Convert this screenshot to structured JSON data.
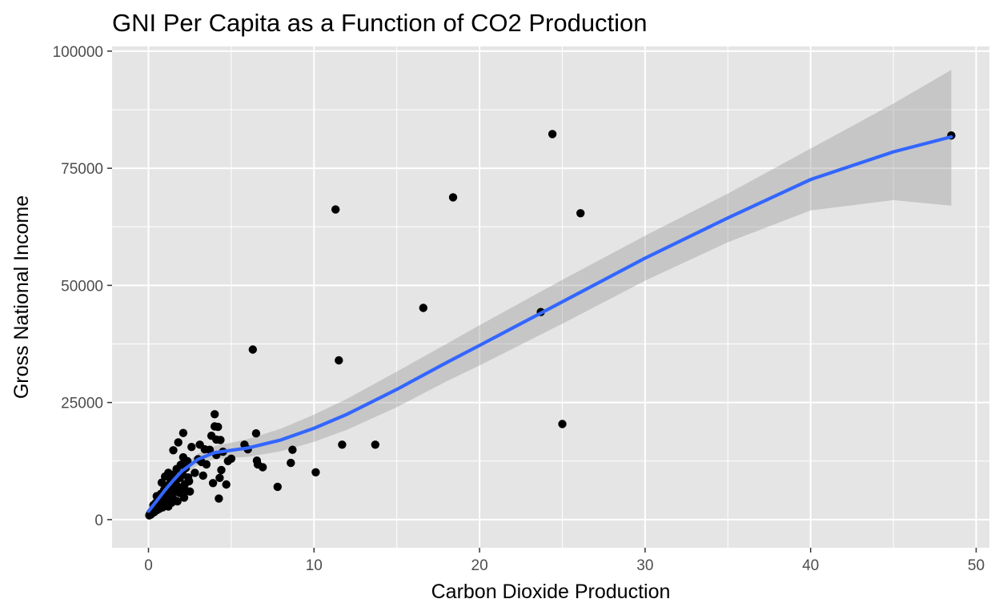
{
  "chart_data": {
    "type": "scatter",
    "title": "GNI Per Capita as a Function of CO2 Production",
    "xlabel": "Carbon Dioxide Production",
    "ylabel": "Gross National Income",
    "xlim": [
      -2.2,
      50.8
    ],
    "ylim": [
      -6000,
      101000
    ],
    "xticks": [
      0,
      10,
      20,
      30,
      40,
      50
    ],
    "xtick_labels": [
      "0",
      "10",
      "20",
      "30",
      "40",
      "50"
    ],
    "yticks": [
      0,
      25000,
      50000,
      75000,
      100000
    ],
    "ytick_labels": [
      "0",
      "25000",
      "50000",
      "75000",
      "100000"
    ],
    "grid": true,
    "colors": {
      "panel": "#e5e5e5",
      "grid": "#ffffff",
      "points": "#000000",
      "smooth_line": "#3366ff",
      "ribbon": "#999999"
    },
    "points": [
      [
        0.05,
        900
      ],
      [
        0.1,
        1300
      ],
      [
        0.15,
        1100
      ],
      [
        0.2,
        1800
      ],
      [
        0.25,
        1500
      ],
      [
        0.3,
        2200
      ],
      [
        0.3,
        3100
      ],
      [
        0.35,
        1600
      ],
      [
        0.4,
        2600
      ],
      [
        0.45,
        3600
      ],
      [
        0.5,
        2000
      ],
      [
        0.5,
        5000
      ],
      [
        0.55,
        2900
      ],
      [
        0.6,
        4300
      ],
      [
        0.65,
        2300
      ],
      [
        0.7,
        3300
      ],
      [
        0.75,
        5500
      ],
      [
        0.8,
        7900
      ],
      [
        0.85,
        2600
      ],
      [
        0.9,
        4800
      ],
      [
        0.95,
        6400
      ],
      [
        1.0,
        3000
      ],
      [
        1.0,
        9200
      ],
      [
        1.05,
        4000
      ],
      [
        1.1,
        5900
      ],
      [
        1.15,
        7300
      ],
      [
        1.2,
        2800
      ],
      [
        1.2,
        10000
      ],
      [
        1.25,
        4600
      ],
      [
        1.3,
        6800
      ],
      [
        1.35,
        8300
      ],
      [
        1.4,
        3600
      ],
      [
        1.45,
        5500
      ],
      [
        1.5,
        9600
      ],
      [
        1.5,
        14800
      ],
      [
        1.55,
        4200
      ],
      [
        1.6,
        6300
      ],
      [
        1.65,
        7700
      ],
      [
        1.7,
        10800
      ],
      [
        1.75,
        3900
      ],
      [
        1.8,
        16500
      ],
      [
        1.85,
        5700
      ],
      [
        1.9,
        8900
      ],
      [
        1.95,
        11700
      ],
      [
        2.0,
        6900
      ],
      [
        2.05,
        9700
      ],
      [
        2.1,
        13300
      ],
      [
        2.1,
        18500
      ],
      [
        2.15,
        4700
      ],
      [
        2.2,
        7600
      ],
      [
        2.25,
        11000
      ],
      [
        2.3,
        6100
      ],
      [
        2.35,
        12500
      ],
      [
        2.4,
        9000
      ],
      [
        2.45,
        8200
      ],
      [
        2.5,
        6000
      ],
      [
        2.6,
        15500
      ],
      [
        2.8,
        10000
      ],
      [
        3.0,
        12900
      ],
      [
        3.1,
        16000
      ],
      [
        3.2,
        12300
      ],
      [
        3.3,
        9400
      ],
      [
        3.4,
        15000
      ],
      [
        3.5,
        11800
      ],
      [
        3.7,
        14900
      ],
      [
        3.8,
        17900
      ],
      [
        3.9,
        7800
      ],
      [
        4.0,
        19900
      ],
      [
        4.0,
        22500
      ],
      [
        4.1,
        13800
      ],
      [
        4.1,
        17100
      ],
      [
        4.2,
        19800
      ],
      [
        4.25,
        4500
      ],
      [
        4.3,
        8900
      ],
      [
        4.35,
        17000
      ],
      [
        4.4,
        10600
      ],
      [
        4.5,
        14500
      ],
      [
        4.7,
        7500
      ],
      [
        4.8,
        12500
      ],
      [
        5.0,
        13000
      ],
      [
        5.8,
        16000
      ],
      [
        6.0,
        15000
      ],
      [
        6.3,
        36300
      ],
      [
        6.5,
        18400
      ],
      [
        6.55,
        12600
      ],
      [
        6.6,
        11800
      ],
      [
        6.9,
        11200
      ],
      [
        7.8,
        7000
      ],
      [
        8.6,
        12100
      ],
      [
        8.7,
        14900
      ],
      [
        10.1,
        10100
      ],
      [
        11.3,
        66200
      ],
      [
        11.5,
        34000
      ],
      [
        11.7,
        16000
      ],
      [
        13.7,
        16000
      ],
      [
        16.6,
        45200
      ],
      [
        18.4,
        68800
      ],
      [
        23.7,
        44300
      ],
      [
        24.4,
        82300
      ],
      [
        25.0,
        20400
      ],
      [
        26.1,
        65400
      ],
      [
        48.5,
        82000
      ]
    ],
    "smooth_fit": [
      [
        0,
        1800
      ],
      [
        0.5,
        4000
      ],
      [
        1,
        6300
      ],
      [
        1.5,
        8400
      ],
      [
        2,
        10300
      ],
      [
        3,
        12900
      ],
      [
        4,
        14300
      ],
      [
        5,
        14800
      ],
      [
        6,
        15300
      ],
      [
        8,
        17000
      ],
      [
        10,
        19500
      ],
      [
        12,
        22500
      ],
      [
        15,
        27800
      ],
      [
        18,
        33500
      ],
      [
        20,
        37200
      ],
      [
        25,
        46500
      ],
      [
        30,
        55800
      ],
      [
        35,
        64400
      ],
      [
        40,
        72600
      ],
      [
        45,
        78500
      ],
      [
        48.5,
        81700
      ]
    ],
    "ribbon_upper": [
      [
        0,
        3200
      ],
      [
        1,
        7200
      ],
      [
        2,
        11300
      ],
      [
        3,
        14100
      ],
      [
        4,
        15700
      ],
      [
        5,
        16400
      ],
      [
        6,
        17200
      ],
      [
        8,
        19400
      ],
      [
        10,
        22400
      ],
      [
        12,
        25800
      ],
      [
        15,
        31600
      ],
      [
        18,
        37500
      ],
      [
        20,
        41500
      ],
      [
        25,
        51200
      ],
      [
        30,
        60600
      ],
      [
        35,
        69600
      ],
      [
        40,
        79200
      ],
      [
        45,
        88800
      ],
      [
        48.5,
        96000
      ]
    ],
    "ribbon_lower": [
      [
        0,
        400
      ],
      [
        1,
        5400
      ],
      [
        2,
        9300
      ],
      [
        3,
        11700
      ],
      [
        4,
        12900
      ],
      [
        5,
        13200
      ],
      [
        6,
        13400
      ],
      [
        8,
        14600
      ],
      [
        10,
        16600
      ],
      [
        12,
        19200
      ],
      [
        15,
        24000
      ],
      [
        18,
        29500
      ],
      [
        20,
        32900
      ],
      [
        25,
        41800
      ],
      [
        30,
        51000
      ],
      [
        35,
        59200
      ],
      [
        40,
        66000
      ],
      [
        45,
        68200
      ],
      [
        48.5,
        67000
      ]
    ]
  }
}
